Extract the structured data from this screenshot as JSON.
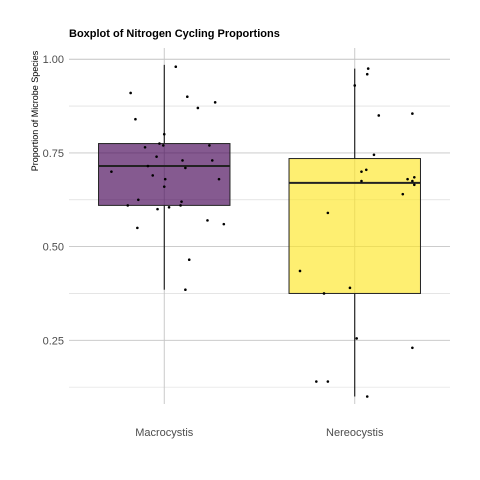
{
  "chart_data": {
    "type": "box",
    "title": "Boxplot of Nitrogen Cycling Proportions",
    "xlabel": "",
    "ylabel": "Proportion of Microbe Species",
    "ylim": [
      0.08,
      1.03
    ],
    "yticks": [
      0.25,
      0.5,
      0.75,
      1.0
    ],
    "ytick_labels": [
      "0.25",
      "0.50",
      "0.75",
      "1.00"
    ],
    "grid": true,
    "legend": "none",
    "categories": [
      "Macrocystis",
      "Nereocystis"
    ],
    "boxes": [
      {
        "category": "Macrocystis",
        "color": "#440154",
        "opacity": 0.65,
        "min": 0.385,
        "q1": 0.61,
        "median": 0.715,
        "q3": 0.775,
        "max": 0.985,
        "points": [
          {
            "x": -0.55,
            "y": 0.7
          },
          {
            "x": -0.38,
            "y": 0.61
          },
          {
            "x": -0.35,
            "y": 0.91
          },
          {
            "x": -0.3,
            "y": 0.84
          },
          {
            "x": -0.28,
            "y": 0.55
          },
          {
            "x": -0.27,
            "y": 0.625
          },
          {
            "x": -0.2,
            "y": 0.765
          },
          {
            "x": -0.17,
            "y": 0.715
          },
          {
            "x": -0.12,
            "y": 0.69
          },
          {
            "x": -0.08,
            "y": 0.74
          },
          {
            "x": -0.07,
            "y": 0.6
          },
          {
            "x": -0.05,
            "y": 0.775
          },
          {
            "x": -0.01,
            "y": 0.77
          },
          {
            "x": 0.0,
            "y": 0.8
          },
          {
            "x": 0.0,
            "y": 0.66
          },
          {
            "x": 0.01,
            "y": 0.68
          },
          {
            "x": 0.05,
            "y": 0.605
          },
          {
            "x": 0.12,
            "y": 0.98
          },
          {
            "x": 0.17,
            "y": 0.61
          },
          {
            "x": 0.18,
            "y": 0.62
          },
          {
            "x": 0.19,
            "y": 0.73
          },
          {
            "x": 0.22,
            "y": 0.71
          },
          {
            "x": 0.22,
            "y": 0.385
          },
          {
            "x": 0.24,
            "y": 0.9
          },
          {
            "x": 0.26,
            "y": 0.465
          },
          {
            "x": 0.35,
            "y": 0.87
          },
          {
            "x": 0.45,
            "y": 0.57
          },
          {
            "x": 0.47,
            "y": 0.77
          },
          {
            "x": 0.5,
            "y": 0.73
          },
          {
            "x": 0.53,
            "y": 0.885
          },
          {
            "x": 0.57,
            "y": 0.68
          },
          {
            "x": 0.62,
            "y": 0.56
          }
        ]
      },
      {
        "category": "Nereocystis",
        "color": "#FDE725",
        "opacity": 0.65,
        "min": 0.1,
        "q1": 0.375,
        "median": 0.67,
        "q3": 0.735,
        "max": 0.975,
        "points": [
          {
            "x": -0.57,
            "y": 0.435
          },
          {
            "x": -0.4,
            "y": 0.14
          },
          {
            "x": -0.32,
            "y": 0.375
          },
          {
            "x": -0.28,
            "y": 0.14
          },
          {
            "x": -0.28,
            "y": 0.59
          },
          {
            "x": -0.05,
            "y": 0.39
          },
          {
            "x": 0.0,
            "y": 0.93
          },
          {
            "x": 0.02,
            "y": 0.255
          },
          {
            "x": 0.07,
            "y": 0.7
          },
          {
            "x": 0.07,
            "y": 0.675
          },
          {
            "x": 0.12,
            "y": 0.705
          },
          {
            "x": 0.13,
            "y": 0.96
          },
          {
            "x": 0.13,
            "y": 0.1
          },
          {
            "x": 0.14,
            "y": 0.975
          },
          {
            "x": 0.2,
            "y": 0.745
          },
          {
            "x": 0.25,
            "y": 0.85
          },
          {
            "x": 0.5,
            "y": 0.64
          },
          {
            "x": 0.55,
            "y": 0.68
          },
          {
            "x": 0.6,
            "y": 0.855
          },
          {
            "x": 0.6,
            "y": 0.23
          },
          {
            "x": 0.6,
            "y": 0.675
          },
          {
            "x": 0.62,
            "y": 0.665
          },
          {
            "x": 0.62,
            "y": 0.685
          }
        ]
      }
    ]
  }
}
